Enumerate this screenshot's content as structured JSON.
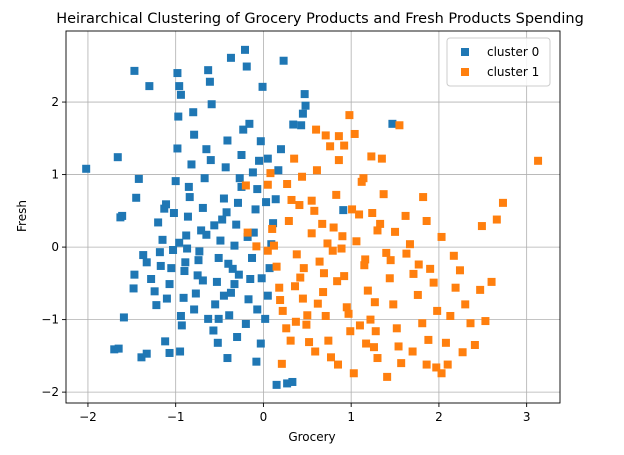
{
  "chart_data": {
    "type": "scatter",
    "title": "Heirarchical Clustering of Grocery Products and Fresh Products Spending",
    "xlabel": "Grocery",
    "ylabel": "Fresh",
    "xlim": [
      -2.25,
      3.38
    ],
    "ylim": [
      -2.15,
      2.98
    ],
    "xticks": [
      -2,
      -1,
      0,
      1,
      2,
      3
    ],
    "yticks": [
      -2,
      -1,
      0,
      1,
      2
    ],
    "grid": true,
    "marker": "square",
    "legend": "top-right",
    "series": [
      {
        "name": "cluster 0",
        "color": "#1f77b4",
        "points": [
          [
            -2.02,
            1.08
          ],
          [
            -1.66,
            1.24
          ],
          [
            -1.63,
            0.41
          ],
          [
            -1.61,
            0.43
          ],
          [
            -1.59,
            -0.97
          ],
          [
            -1.7,
            -1.41
          ],
          [
            -1.65,
            -1.4
          ],
          [
            -1.48,
            -0.57
          ],
          [
            -1.47,
            -0.38
          ],
          [
            -1.45,
            0.68
          ],
          [
            -1.42,
            0.94
          ],
          [
            -1.39,
            -1.52
          ],
          [
            -1.33,
            -1.47
          ],
          [
            -1.37,
            -0.11
          ],
          [
            -1.33,
            -0.21
          ],
          [
            -1.28,
            -0.44
          ],
          [
            -1.22,
            -0.8
          ],
          [
            -1.2,
            0.34
          ],
          [
            -1.18,
            -0.07
          ],
          [
            -1.15,
            0.1
          ],
          [
            -1.13,
            0.53
          ],
          [
            -1.11,
            0.59
          ],
          [
            -1.1,
            -0.71
          ],
          [
            -1.07,
            -0.51
          ],
          [
            -1.05,
            -0.29
          ],
          [
            -1.03,
            -0.04
          ],
          [
            -1.0,
            0.91
          ],
          [
            -0.98,
            1.36
          ],
          [
            -0.97,
            1.8
          ],
          [
            -0.94,
            2.1
          ],
          [
            -0.98,
            2.4
          ],
          [
            -1.07,
            -1.46
          ],
          [
            -0.95,
            -1.44
          ],
          [
            -0.93,
            -1.08
          ],
          [
            -0.91,
            -0.7
          ],
          [
            -0.89,
            -0.21
          ],
          [
            -0.88,
            0.16
          ],
          [
            -0.86,
            0.42
          ],
          [
            -0.84,
            0.69
          ],
          [
            -0.82,
            1.14
          ],
          [
            -0.8,
            1.86
          ],
          [
            -0.77,
            -0.64
          ],
          [
            -0.75,
            -0.39
          ],
          [
            -0.73,
            -0.06
          ],
          [
            -0.71,
            0.23
          ],
          [
            -0.69,
            0.54
          ],
          [
            -0.67,
            0.95
          ],
          [
            -0.65,
            1.35
          ],
          [
            -0.63,
            2.44
          ],
          [
            -0.61,
            2.28
          ],
          [
            -0.59,
            1.97
          ],
          [
            -0.57,
            -1.15
          ],
          [
            -0.55,
            -0.79
          ],
          [
            -0.53,
            -0.48
          ],
          [
            -0.51,
            -0.15
          ],
          [
            -0.49,
            0.09
          ],
          [
            -0.47,
            0.38
          ],
          [
            -0.45,
            0.67
          ],
          [
            -0.43,
            1.1
          ],
          [
            -0.41,
            1.47
          ],
          [
            -0.39,
            -0.94
          ],
          [
            -0.37,
            -0.63
          ],
          [
            -0.35,
            -0.3
          ],
          [
            -0.33,
            0.02
          ],
          [
            -0.31,
            0.31
          ],
          [
            -0.29,
            0.61
          ],
          [
            -0.27,
            0.95
          ],
          [
            -0.25,
            1.27
          ],
          [
            -0.23,
            1.62
          ],
          [
            -0.21,
            2.72
          ],
          [
            -0.19,
            2.49
          ],
          [
            -0.17,
            -0.72
          ],
          [
            -0.15,
            -0.44
          ],
          [
            -0.13,
            -0.15
          ],
          [
            -0.11,
            0.2
          ],
          [
            -0.09,
            0.52
          ],
          [
            -0.07,
            0.8
          ],
          [
            -0.05,
            1.19
          ],
          [
            -0.03,
            1.46
          ],
          [
            -0.01,
            2.21
          ],
          [
            -0.08,
            -1.58
          ],
          [
            -0.03,
            -1.33
          ],
          [
            0.02,
            -0.99
          ],
          [
            0.05,
            -0.67
          ],
          [
            0.07,
            -0.29
          ],
          [
            0.09,
            0.04
          ],
          [
            0.11,
            0.33
          ],
          [
            0.14,
            0.66
          ],
          [
            0.17,
            1.06
          ],
          [
            0.2,
            1.35
          ],
          [
            0.23,
            2.57
          ],
          [
            0.15,
            -1.9
          ],
          [
            0.27,
            -1.88
          ],
          [
            0.33,
            -1.86
          ],
          [
            0.45,
            1.84
          ],
          [
            0.47,
            2.11
          ],
          [
            0.48,
            1.95
          ],
          [
            0.34,
            1.69
          ],
          [
            0.43,
            1.68
          ],
          [
            0.91,
            0.51
          ],
          [
            1.47,
            1.7
          ],
          [
            -0.96,
            0.06
          ],
          [
            -0.9,
            -0.33
          ],
          [
            -0.79,
            -0.86
          ],
          [
            -0.63,
            -0.99
          ],
          [
            -0.52,
            -1.32
          ],
          [
            -0.41,
            -1.53
          ],
          [
            -0.3,
            -1.24
          ],
          [
            -0.2,
            -1.06
          ],
          [
            -0.33,
            -0.51
          ],
          [
            -0.65,
            0.17
          ],
          [
            -0.85,
            0.83
          ],
          [
            -1.02,
            0.47
          ],
          [
            -1.17,
            -0.26
          ],
          [
            -1.24,
            -0.61
          ],
          [
            -0.74,
            -0.18
          ],
          [
            -0.56,
            0.3
          ],
          [
            -0.4,
            -0.23
          ],
          [
            -0.18,
            0.14
          ],
          [
            -0.25,
            0.83
          ],
          [
            -0.02,
            -0.43
          ],
          [
            0.03,
            0.62
          ],
          [
            -0.12,
            1.03
          ],
          [
            -0.45,
            -0.67
          ],
          [
            -0.94,
            -0.95
          ],
          [
            -1.12,
            -1.3
          ],
          [
            -0.79,
            1.55
          ],
          [
            -0.6,
            1.2
          ],
          [
            -0.37,
            2.61
          ],
          [
            -0.16,
            1.7
          ],
          [
            0.05,
            1.22
          ],
          [
            -1.3,
            2.22
          ],
          [
            -1.47,
            2.43
          ],
          [
            -0.96,
            2.22
          ],
          [
            -0.42,
            0.48
          ],
          [
            -0.69,
            -0.46
          ],
          [
            -0.87,
            -0.02
          ],
          [
            -0.51,
            -0.99
          ],
          [
            -0.28,
            -0.38
          ],
          [
            -0.07,
            -0.86
          ]
        ]
      },
      {
        "name": "cluster 1",
        "color": "#ff7f0e",
        "points": [
          [
            -0.2,
            0.85
          ],
          [
            -0.18,
            0.2
          ],
          [
            0.05,
            0.86
          ],
          [
            0.08,
            1.02
          ],
          [
            0.12,
            0.02
          ],
          [
            0.15,
            -0.27
          ],
          [
            0.18,
            -0.56
          ],
          [
            0.22,
            -0.88
          ],
          [
            0.26,
            -1.12
          ],
          [
            0.29,
            0.36
          ],
          [
            0.32,
            0.65
          ],
          [
            0.35,
            1.22
          ],
          [
            0.38,
            -0.1
          ],
          [
            0.42,
            -0.42
          ],
          [
            0.45,
            -0.71
          ],
          [
            0.49,
            -1.07
          ],
          [
            0.52,
            -1.31
          ],
          [
            0.55,
            0.19
          ],
          [
            0.58,
            0.5
          ],
          [
            0.61,
            1.06
          ],
          [
            0.64,
            -0.2
          ],
          [
            0.68,
            -0.62
          ],
          [
            0.71,
            -0.95
          ],
          [
            0.74,
            -1.29
          ],
          [
            0.77,
            -1.52
          ],
          [
            0.8,
            0.27
          ],
          [
            0.83,
            0.72
          ],
          [
            0.86,
            1.2
          ],
          [
            0.89,
            -0.02
          ],
          [
            0.92,
            -0.4
          ],
          [
            0.95,
            -0.83
          ],
          [
            0.99,
            -1.16
          ],
          [
            1.03,
            -1.74
          ],
          [
            1.06,
            0.08
          ],
          [
            1.09,
            0.45
          ],
          [
            1.12,
            0.9
          ],
          [
            1.15,
            -0.25
          ],
          [
            1.19,
            -0.6
          ],
          [
            1.22,
            -1.0
          ],
          [
            1.26,
            -1.38
          ],
          [
            1.3,
            -1.53
          ],
          [
            1.33,
            0.32
          ],
          [
            1.37,
            0.73
          ],
          [
            1.4,
            -0.08
          ],
          [
            1.44,
            -0.43
          ],
          [
            1.48,
            -0.79
          ],
          [
            1.52,
            -1.12
          ],
          [
            1.57,
            -1.6
          ],
          [
            1.62,
            0.43
          ],
          [
            1.67,
            0.04
          ],
          [
            1.71,
            -0.37
          ],
          [
            1.76,
            -0.66
          ],
          [
            1.81,
            -1.05
          ],
          [
            1.86,
            -1.62
          ],
          [
            1.9,
            -0.3
          ],
          [
            1.94,
            -0.49
          ],
          [
            1.98,
            -0.88
          ],
          [
            2.03,
            -1.74
          ],
          [
            2.08,
            -1.32
          ],
          [
            2.13,
            -0.95
          ],
          [
            2.19,
            -0.56
          ],
          [
            2.24,
            -0.32
          ],
          [
            2.3,
            -0.79
          ],
          [
            2.36,
            -1.05
          ],
          [
            2.41,
            -1.35
          ],
          [
            2.47,
            -0.59
          ],
          [
            2.53,
            -1.02
          ],
          [
            2.6,
            -0.48
          ],
          [
            2.66,
            0.38
          ],
          [
            2.73,
            0.61
          ],
          [
            3.13,
            1.19
          ],
          [
            0.98,
            1.82
          ],
          [
            0.86,
            1.53
          ],
          [
            1.04,
            1.56
          ],
          [
            1.55,
            1.68
          ],
          [
            1.23,
            1.25
          ],
          [
            1.35,
            1.22
          ],
          [
            0.6,
            1.62
          ],
          [
            0.71,
            1.54
          ],
          [
            0.76,
            1.39
          ],
          [
            0.92,
            1.4
          ],
          [
            1.14,
            0.95
          ],
          [
            1.24,
            0.47
          ],
          [
            1.3,
            0.23
          ],
          [
            1.5,
            0.21
          ],
          [
            1.82,
            0.69
          ],
          [
            1.86,
            0.36
          ],
          [
            2.03,
            0.14
          ],
          [
            2.49,
            0.29
          ],
          [
            0.44,
            0.97
          ],
          [
            0.55,
            0.64
          ],
          [
            0.67,
            0.32
          ],
          [
            0.73,
            0.05
          ],
          [
            0.84,
            -0.47
          ],
          [
            0.97,
            -0.92
          ],
          [
            1.1,
            -1.08
          ],
          [
            1.17,
            -1.33
          ],
          [
            1.28,
            -1.16
          ],
          [
            1.41,
            -1.79
          ],
          [
            1.54,
            -1.37
          ],
          [
            1.7,
            -1.44
          ],
          [
            1.88,
            -1.28
          ],
          [
            1.97,
            -1.66
          ],
          [
            2.1,
            -1.62
          ],
          [
            2.27,
            -1.45
          ],
          [
            0.21,
            -1.61
          ],
          [
            0.31,
            -1.29
          ],
          [
            0.37,
            -1.03
          ],
          [
            0.5,
            -0.94
          ],
          [
            0.62,
            -0.78
          ],
          [
            0.69,
            -0.36
          ],
          [
            0.79,
            -0.05
          ],
          [
            0.9,
            0.15
          ],
          [
            1.01,
            0.52
          ],
          [
            1.16,
            -0.17
          ],
          [
            1.27,
            -0.76
          ],
          [
            1.45,
            -0.18
          ],
          [
            1.63,
            -0.09
          ],
          [
            1.77,
            -0.24
          ],
          [
            2.17,
            -0.12
          ],
          [
            0.05,
            -0.05
          ],
          [
            -0.08,
            0.01
          ],
          [
            0.1,
            0.25
          ],
          [
            0.27,
            0.87
          ],
          [
            0.41,
            0.58
          ],
          [
            0.19,
            -0.73
          ],
          [
            0.36,
            -0.54
          ],
          [
            0.46,
            -0.29
          ],
          [
            0.59,
            -1.44
          ],
          [
            0.85,
            -1.62
          ]
        ]
      }
    ]
  }
}
